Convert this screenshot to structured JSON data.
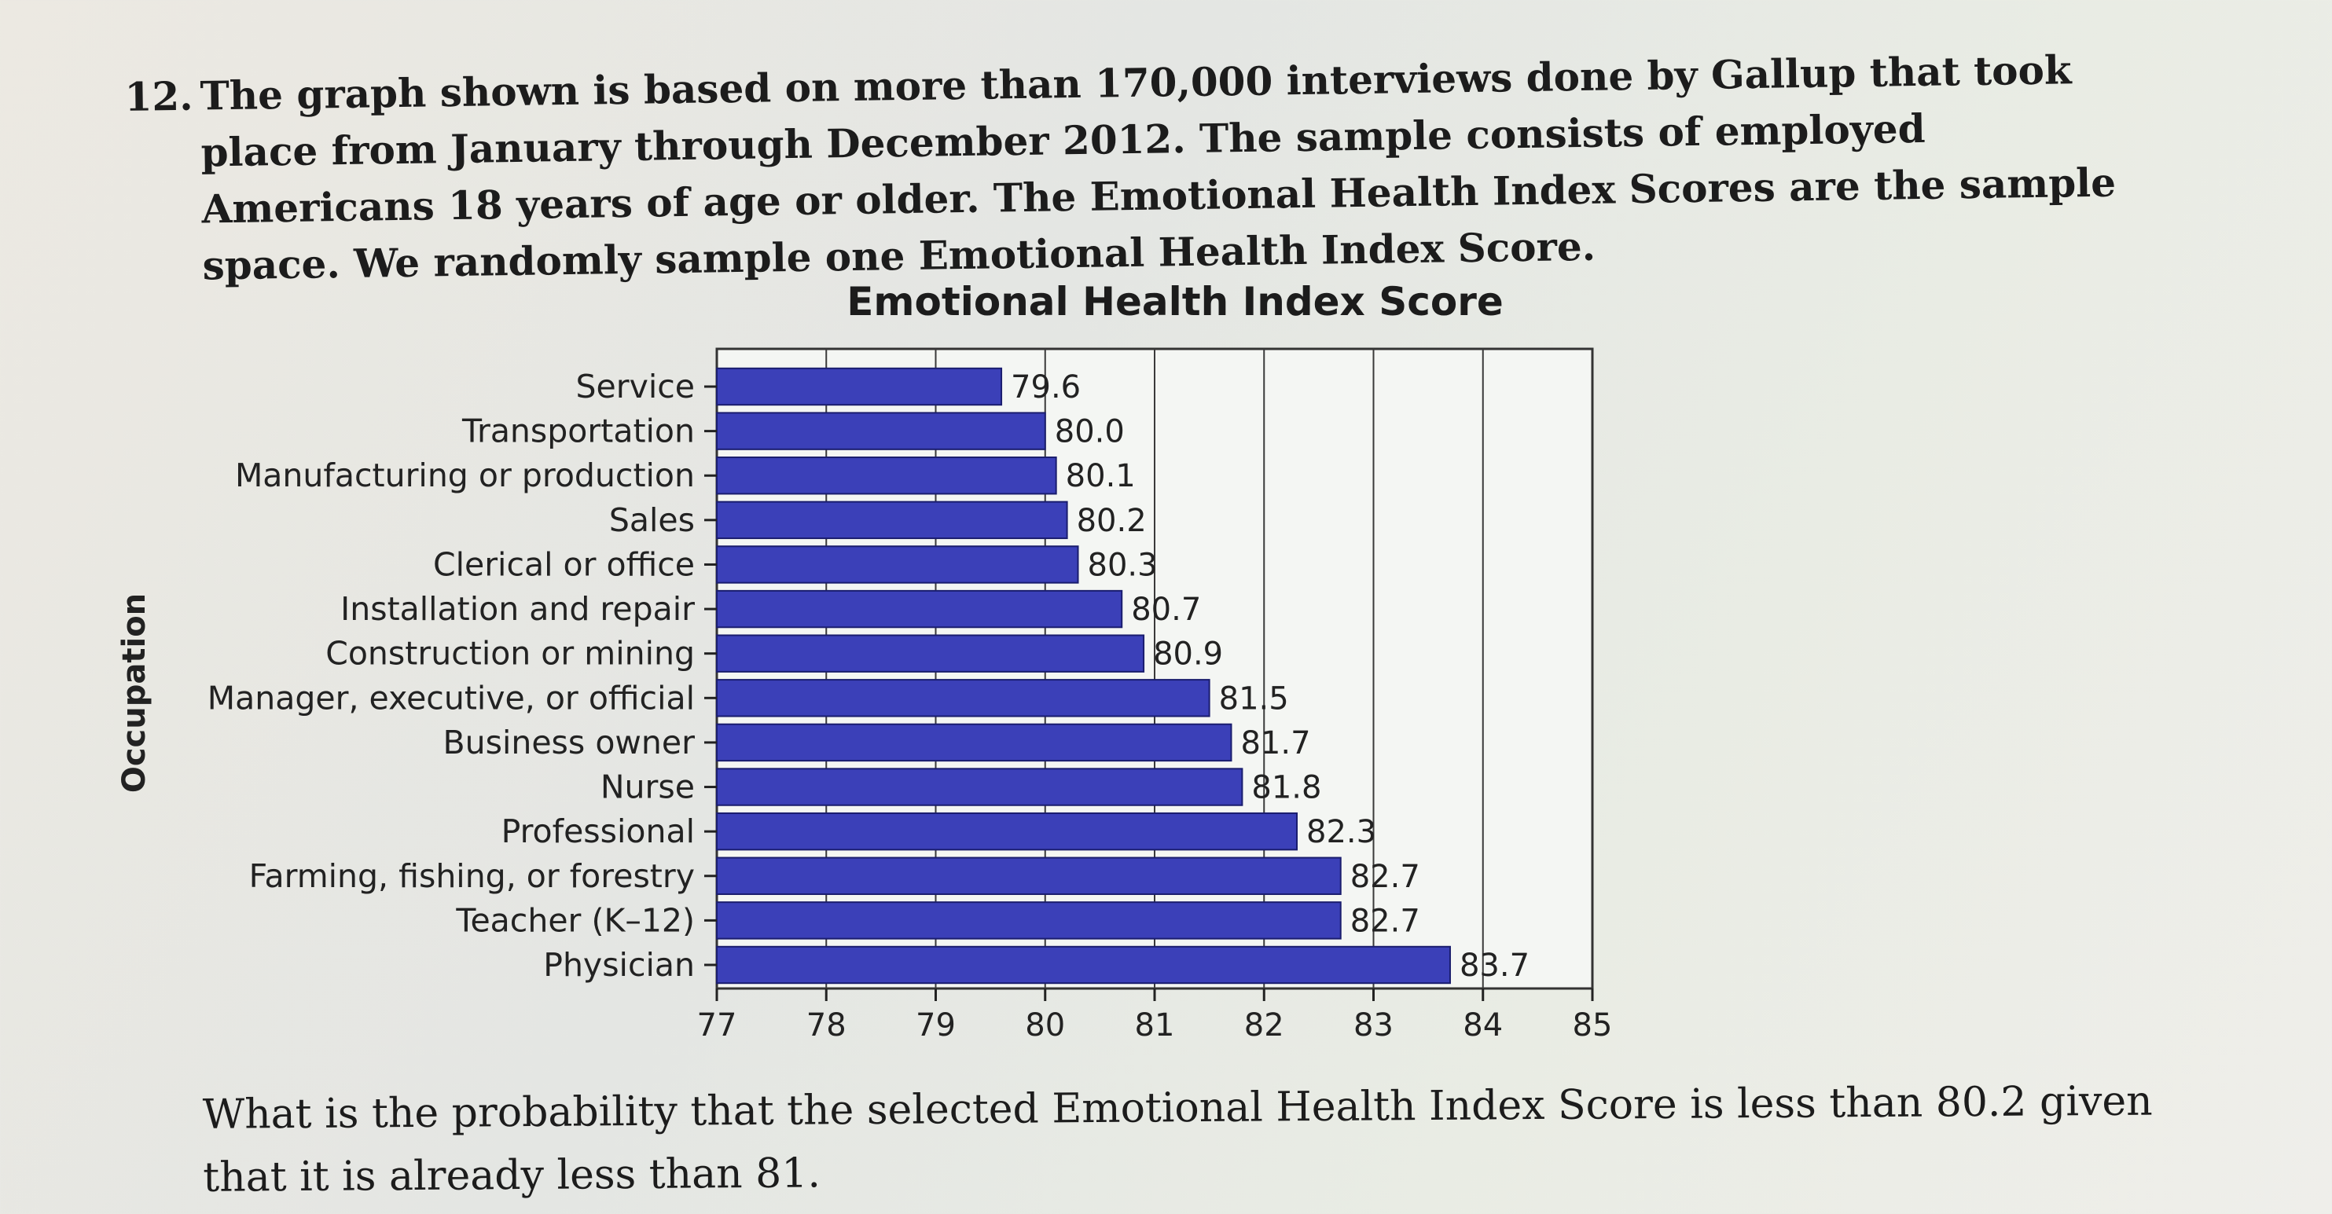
{
  "question": {
    "number": "12.",
    "text": "The graph shown is based on more than 170,000 interviews done by Gallup that took place from January through December 2012. The sample consists of employed Americans 18 years of age or older. The Emotional Health Index Scores are the sample space. We randomly sample one Emotional Health Index Score."
  },
  "followup": "What is the probability that the selected Emotional Health Index Score is less than 80.2 given that it is already less than 81.",
  "colors": {
    "bar": "#3b40b8",
    "bar_edge": "#1a1d6e"
  },
  "chart_data": {
    "type": "bar",
    "orientation": "horizontal",
    "title": "Emotional Health Index Score",
    "xlabel": "",
    "ylabel": "Occupation",
    "xlim": [
      77,
      85
    ],
    "xticks": [
      "77",
      "78",
      "79",
      "80",
      "81",
      "82",
      "83",
      "84",
      "85"
    ],
    "grid": true,
    "categories": [
      "Service",
      "Transportation",
      "Manufacturing or production",
      "Sales",
      "Clerical or office",
      "Installation and repair",
      "Construction or mining",
      "Manager, executive, or official",
      "Business owner",
      "Nurse",
      "Professional",
      "Farming, fishing, or forestry",
      "Teacher (K–12)",
      "Physician"
    ],
    "values": [
      79.6,
      80.0,
      80.1,
      80.2,
      80.3,
      80.7,
      80.9,
      81.5,
      81.7,
      81.8,
      82.3,
      82.7,
      82.7,
      83.7
    ],
    "value_labels": [
      "79.6",
      "80.0",
      "80.1",
      "80.2",
      "80.3",
      "80.7",
      "80.9",
      "81.5",
      "81.7",
      "81.8",
      "82.3",
      "82.7",
      "82.7",
      "83.7"
    ]
  }
}
